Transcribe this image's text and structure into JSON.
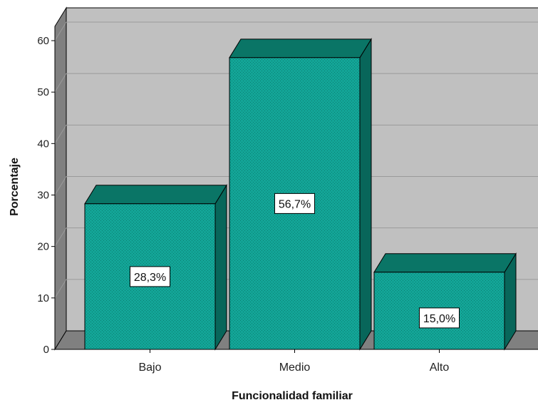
{
  "chart_data": {
    "type": "bar",
    "style": "3d",
    "categories": [
      "Bajo",
      "Medio",
      "Alto"
    ],
    "values": [
      28.3,
      56.7,
      15.0
    ],
    "data_labels": [
      "28,3%",
      "56,7%",
      "15,0%"
    ],
    "xlabel": "Funcionalidad familiar",
    "ylabel": "Porcentaje",
    "ylim": [
      0,
      60
    ],
    "yticks": [
      "0",
      "10",
      "20",
      "30",
      "40",
      "50",
      "60"
    ],
    "grid": true,
    "legend": "none",
    "colors": {
      "bar_face": "#13A597",
      "bar_top": "#0A7566",
      "bar_side": "#08665A",
      "back_wall": "#C0C0C0",
      "side_wall": "#808080",
      "floor": "#808080",
      "gridline": "#9A9A9A"
    }
  }
}
